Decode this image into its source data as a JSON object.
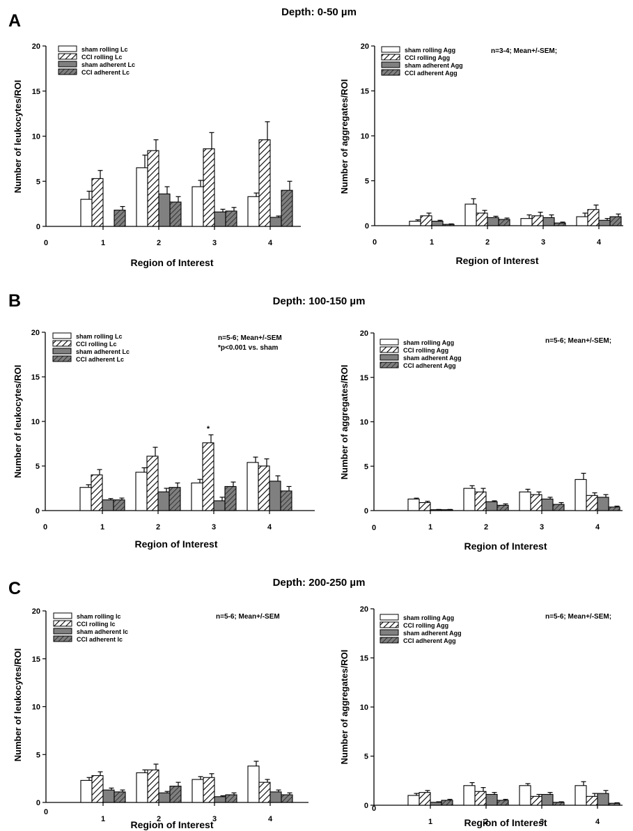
{
  "colors": {
    "sham_rolling": "#ffffff",
    "cci_rolling": "hatch-white",
    "sham_adherent": "#808080",
    "cci_adherent": "hatch-gray"
  },
  "panels": [
    {
      "label": "A",
      "title": "Depth: 0-50 µm",
      "chart_data": [
        {
          "type": "bar",
          "ylabel": "Number of leukocytes/ROI",
          "xlabel": "Region of Interest",
          "categories": [
            "1",
            "2",
            "3",
            "4"
          ],
          "x_zero_label": "0",
          "ylim": [
            0,
            20
          ],
          "yticks": [
            0,
            5,
            10,
            15,
            20
          ],
          "annotations": [],
          "series": [
            {
              "name": "sham rolling Lc",
              "values": [
                3.0,
                6.5,
                4.4,
                3.3
              ],
              "errors": [
                0.9,
                1.4,
                0.7,
                0.4
              ]
            },
            {
              "name": "CCI rolling Lc",
              "values": [
                5.3,
                8.4,
                8.6,
                9.6
              ],
              "errors": [
                0.9,
                1.2,
                1.8,
                2.0
              ]
            },
            {
              "name": "sham adherent Lc",
              "values": [
                0.0,
                3.6,
                1.6,
                1.0
              ],
              "errors": [
                0.0,
                0.8,
                0.3,
                0.15
              ]
            },
            {
              "name": "CCI adherent Lc",
              "values": [
                1.8,
                2.7,
                1.7,
                4.0
              ],
              "errors": [
                0.4,
                0.6,
                0.4,
                1.0
              ]
            }
          ],
          "markers": []
        },
        {
          "type": "bar",
          "ylabel": "Number of aggregates/ROI",
          "xlabel": "Region of Interest",
          "categories": [
            "1",
            "2",
            "3",
            "4"
          ],
          "x_zero_label": "0",
          "ylim": [
            0,
            20
          ],
          "yticks": [
            0,
            5,
            10,
            15,
            20
          ],
          "annotations": [
            "n=3-4; Mean+/-SEM;"
          ],
          "series": [
            {
              "name": "sham rolling Agg",
              "values": [
                0.5,
                2.4,
                0.8,
                1.0
              ],
              "errors": [
                0.15,
                0.6,
                0.4,
                0.4
              ]
            },
            {
              "name": "CCI rolling Agg",
              "values": [
                1.1,
                1.4,
                1.1,
                1.8
              ],
              "errors": [
                0.3,
                0.3,
                0.4,
                0.5
              ]
            },
            {
              "name": "sham adherent Agg",
              "values": [
                0.5,
                0.9,
                0.9,
                0.6
              ],
              "errors": [
                0.1,
                0.15,
                0.3,
                0.2
              ]
            },
            {
              "name": "CCI adherent Agg",
              "values": [
                0.15,
                0.7,
                0.3,
                1.0
              ],
              "errors": [
                0.05,
                0.15,
                0.1,
                0.3
              ]
            }
          ],
          "markers": []
        }
      ]
    },
    {
      "label": "B",
      "title": "Depth: 100-150 µm",
      "chart_data": [
        {
          "type": "bar",
          "ylabel": "Number of leukocytes/ROI",
          "xlabel": "Region of Interest",
          "categories": [
            "1",
            "2",
            "3",
            "4"
          ],
          "x_zero_label": "0",
          "ylim": [
            0,
            20
          ],
          "yticks": [
            0,
            5,
            10,
            15,
            20
          ],
          "annotations": [
            "n=5-6; Mean+/-SEM",
            "*p<0.001 vs. sham"
          ],
          "series": [
            {
              "name": "sham rolling Lc",
              "values": [
                2.6,
                4.3,
                3.1,
                5.4
              ],
              "errors": [
                0.3,
                0.5,
                0.4,
                0.6
              ]
            },
            {
              "name": "CCI rolling Lc",
              "values": [
                4.0,
                6.1,
                7.6,
                5.0
              ],
              "errors": [
                0.6,
                1.0,
                0.9,
                0.8
              ]
            },
            {
              "name": "sham adherent Lc",
              "values": [
                1.2,
                2.1,
                1.1,
                3.3
              ],
              "errors": [
                0.15,
                0.4,
                0.4,
                0.6
              ]
            },
            {
              "name": "CCI adherent Lc",
              "values": [
                1.2,
                2.6,
                2.7,
                2.2
              ],
              "errors": [
                0.2,
                0.5,
                0.5,
                0.5
              ]
            }
          ],
          "markers": [
            {
              "category": "3",
              "series": 1,
              "text": "*"
            }
          ]
        },
        {
          "type": "bar",
          "ylabel": "Number of aggregates/ROI",
          "xlabel": "Region of Interest",
          "categories": [
            "1",
            "2",
            "3",
            "4"
          ],
          "x_zero_label": "0",
          "ylim": [
            0,
            20
          ],
          "yticks": [
            0,
            5,
            10,
            15,
            20
          ],
          "annotations": [
            "n=5-6; Mean+/-SEM;"
          ],
          "series": [
            {
              "name": "sham rolling Agg",
              "values": [
                1.3,
                2.5,
                2.1,
                3.5
              ],
              "errors": [
                0.1,
                0.3,
                0.3,
                0.7
              ]
            },
            {
              "name": "CCI rolling Agg",
              "values": [
                0.9,
                2.1,
                1.8,
                1.7
              ],
              "errors": [
                0.15,
                0.4,
                0.3,
                0.3
              ]
            },
            {
              "name": "sham adherent Agg",
              "values": [
                0.1,
                1.0,
                1.3,
                1.5
              ],
              "errors": [
                0.03,
                0.1,
                0.2,
                0.3
              ]
            },
            {
              "name": "CCI adherent Agg",
              "values": [
                0.1,
                0.6,
                0.7,
                0.4
              ],
              "errors": [
                0.03,
                0.15,
                0.2,
                0.1
              ]
            }
          ],
          "markers": []
        }
      ]
    },
    {
      "label": "C",
      "title": "Depth: 200-250 µm",
      "chart_data": [
        {
          "type": "bar",
          "ylabel": "Number of leukocytes/ROI",
          "xlabel": "Region of Interest",
          "categories": [
            "1",
            "2",
            "3",
            "4"
          ],
          "x_zero_label": "0",
          "ylim": [
            0,
            20
          ],
          "yticks": [
            0,
            5,
            10,
            15,
            20
          ],
          "annotations": [
            "n=5-6; Mean+/-SEM"
          ],
          "series": [
            {
              "name": "sham rolling lc",
              "values": [
                2.3,
                3.1,
                2.4,
                3.8
              ],
              "errors": [
                0.3,
                0.3,
                0.3,
                0.5
              ]
            },
            {
              "name": "CCI rolling lc",
              "values": [
                2.8,
                3.4,
                2.6,
                2.1
              ],
              "errors": [
                0.4,
                0.6,
                0.4,
                0.3
              ]
            },
            {
              "name": "sham adherent lc",
              "values": [
                1.3,
                1.0,
                0.6,
                1.1
              ],
              "errors": [
                0.2,
                0.15,
                0.1,
                0.2
              ]
            },
            {
              "name": "CCI adherent lc",
              "values": [
                1.1,
                1.7,
                0.8,
                0.8
              ],
              "errors": [
                0.2,
                0.4,
                0.2,
                0.2
              ]
            }
          ],
          "markers": []
        },
        {
          "type": "bar",
          "ylabel": "Number of aggregates/ROI",
          "xlabel": "Region of Interest",
          "categories": [
            "1",
            "2",
            "3",
            "4"
          ],
          "x_zero_label": "0",
          "ylim": [
            0,
            20
          ],
          "yticks": [
            0,
            5,
            10,
            15,
            20
          ],
          "annotations": [
            "n=5-6; Mean+/-SEM;"
          ],
          "series": [
            {
              "name": "sham rolling Agg",
              "values": [
                1.0,
                2.0,
                2.0,
                2.0
              ],
              "errors": [
                0.2,
                0.3,
                0.2,
                0.4
              ]
            },
            {
              "name": "CCI rolling Agg",
              "values": [
                1.3,
                1.4,
                0.9,
                0.9
              ],
              "errors": [
                0.2,
                0.4,
                0.2,
                0.3
              ]
            },
            {
              "name": "sham adherent Agg",
              "values": [
                0.3,
                1.1,
                1.1,
                1.2
              ],
              "errors": [
                0.05,
                0.2,
                0.2,
                0.3
              ]
            },
            {
              "name": "CCI adherent Agg",
              "values": [
                0.5,
                0.5,
                0.3,
                0.2
              ],
              "errors": [
                0.1,
                0.1,
                0.05,
                0.05
              ]
            }
          ],
          "markers": []
        }
      ]
    }
  ]
}
